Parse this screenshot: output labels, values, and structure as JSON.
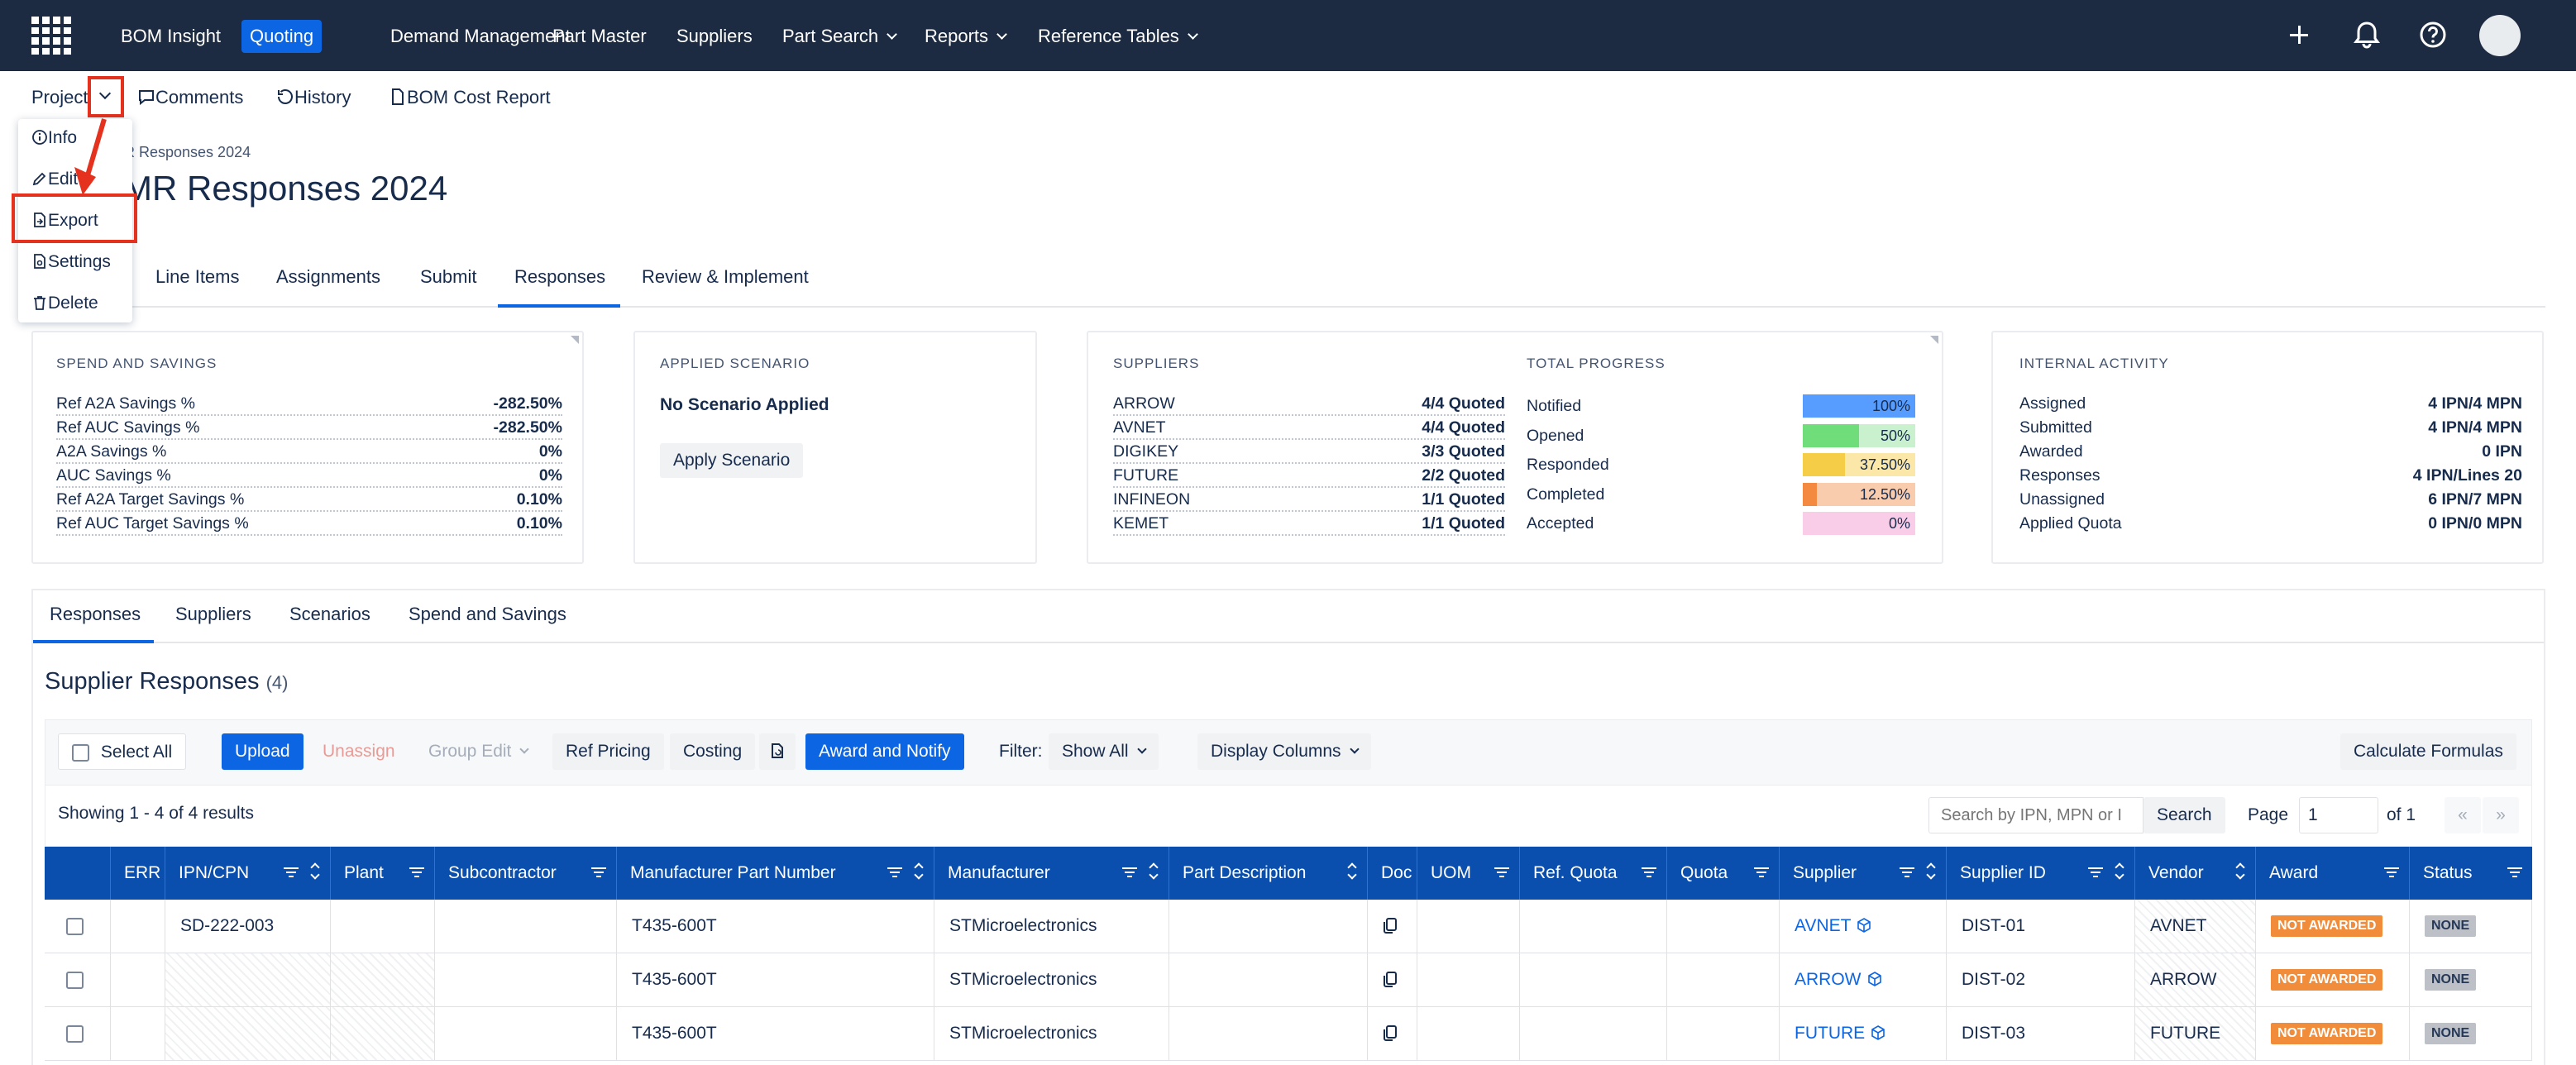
{
  "topnav": {
    "items": [
      "BOM Insight",
      "Quoting",
      "Demand Management",
      "Part Master",
      "Suppliers",
      "Part Search",
      "Reports",
      "Reference Tables"
    ],
    "active": "Quoting"
  },
  "subnav": {
    "project": "Project",
    "comments": "Comments",
    "history": "History",
    "bom_cost_report": "BOM Cost Report"
  },
  "dropdown": {
    "items": [
      "Info",
      "Edit",
      "Export",
      "Settings",
      "Delete"
    ]
  },
  "page": {
    "breadcrumb": "g MR Responses 2024",
    "title": "g MR Responses 2024"
  },
  "tabs": [
    "Line Items",
    "Assignments",
    "Submit",
    "Responses",
    "Review & Implement"
  ],
  "spend": {
    "title": "SPEND AND SAVINGS",
    "rows": [
      {
        "label": "Ref A2A Savings %",
        "value": "-282.50%"
      },
      {
        "label": "Ref AUC Savings %",
        "value": "-282.50%"
      },
      {
        "label": "A2A Savings %",
        "value": "0%"
      },
      {
        "label": "AUC Savings %",
        "value": "0%"
      },
      {
        "label": "Ref A2A Target Savings %",
        "value": "0.10%"
      },
      {
        "label": "Ref AUC Target Savings %",
        "value": "0.10%"
      }
    ]
  },
  "scenario": {
    "title": "APPLIED SCENARIO",
    "status": "No Scenario Applied",
    "button": "Apply Scenario"
  },
  "suppliers_card": {
    "title": "SUPPLIERS",
    "rows": [
      {
        "label": "ARROW",
        "value": "4/4 Quoted"
      },
      {
        "label": "AVNET",
        "value": "4/4 Quoted"
      },
      {
        "label": "DIGIKEY",
        "value": "3/3 Quoted"
      },
      {
        "label": "FUTURE",
        "value": "2/2 Quoted"
      },
      {
        "label": "INFINEON",
        "value": "1/1 Quoted"
      },
      {
        "label": "KEMET",
        "value": "1/1 Quoted"
      }
    ]
  },
  "progress": {
    "title": "TOTAL PROGRESS",
    "rows": [
      {
        "label": "Notified",
        "value": "100%",
        "fraction": 1.0,
        "color": "#579dff",
        "track": "#579dff"
      },
      {
        "label": "Opened",
        "value": "50%",
        "fraction": 0.5,
        "color": "#6fde7a",
        "track": "#c9f1cd"
      },
      {
        "label": "Responded",
        "value": "37.50%",
        "fraction": 0.375,
        "color": "#f5cd47",
        "track": "#fbe8a8"
      },
      {
        "label": "Completed",
        "value": "12.50%",
        "fraction": 0.125,
        "color": "#f38a3f",
        "track": "#f9ccae"
      },
      {
        "label": "Accepted",
        "value": "0%",
        "fraction": 0.0,
        "color": "#f797d2",
        "track": "#f9cce8"
      }
    ]
  },
  "internal": {
    "title": "INTERNAL ACTIVITY",
    "rows": [
      {
        "label": "Assigned",
        "value": "4 IPN/4 MPN"
      },
      {
        "label": "Submitted",
        "value": "4 IPN/4 MPN"
      },
      {
        "label": "Awarded",
        "value": "0 IPN"
      },
      {
        "label": "Responses",
        "value": "4 IPN/Lines 20"
      },
      {
        "label": "Unassigned",
        "value": "6 IPN/7 MPN"
      },
      {
        "label": "Applied Quota",
        "value": "0 IPN/0 MPN"
      }
    ]
  },
  "subtabs": [
    "Responses",
    "Suppliers",
    "Scenarios",
    "Spend and Savings"
  ],
  "section": {
    "title": "Supplier Responses",
    "count": "(4)"
  },
  "toolbar": {
    "select_all": "Select All",
    "upload": "Upload",
    "unassign": "Unassign",
    "group_edit": "Group Edit",
    "ref_pricing": "Ref Pricing",
    "costing": "Costing",
    "award_notify": "Award and Notify",
    "filter_label": "Filter:",
    "filter_value": "Show All",
    "display_columns": "Display Columns",
    "calculate": "Calculate Formulas"
  },
  "results": {
    "showing": "Showing 1 - 4 of 4 results",
    "search_placeholder": "Search by IPN, MPN or I",
    "search_button": "Search",
    "page_label": "Page",
    "page_value": "1",
    "of": "of 1",
    "prev": "«",
    "next": "»"
  },
  "table": {
    "columns": [
      "ERR",
      "IPN/CPN",
      "Plant",
      "Subcontractor",
      "Manufacturer Part Number",
      "Manufacturer",
      "Part Description",
      "Doc",
      "UOM",
      "Ref. Quota",
      "Quota",
      "Supplier",
      "Supplier ID",
      "Vendor",
      "Award",
      "Status"
    ],
    "rows": [
      {
        "ipn": "SD-222-003",
        "mpn": "T435-600T",
        "manufacturer": "STMicroelectronics",
        "supplier": "AVNET",
        "supplier_id": "DIST-01",
        "vendor": "AVNET",
        "award": "NOT AWARDED",
        "status": "NONE"
      },
      {
        "ipn": "",
        "mpn": "T435-600T",
        "manufacturer": "STMicroelectronics",
        "supplier": "ARROW",
        "supplier_id": "DIST-02",
        "vendor": "ARROW",
        "award": "NOT AWARDED",
        "status": "NONE"
      },
      {
        "ipn": "",
        "mpn": "T435-600T",
        "manufacturer": "STMicroelectronics",
        "supplier": "FUTURE",
        "supplier_id": "DIST-03",
        "vendor": "FUTURE",
        "award": "NOT AWARDED",
        "status": "NONE"
      }
    ]
  }
}
